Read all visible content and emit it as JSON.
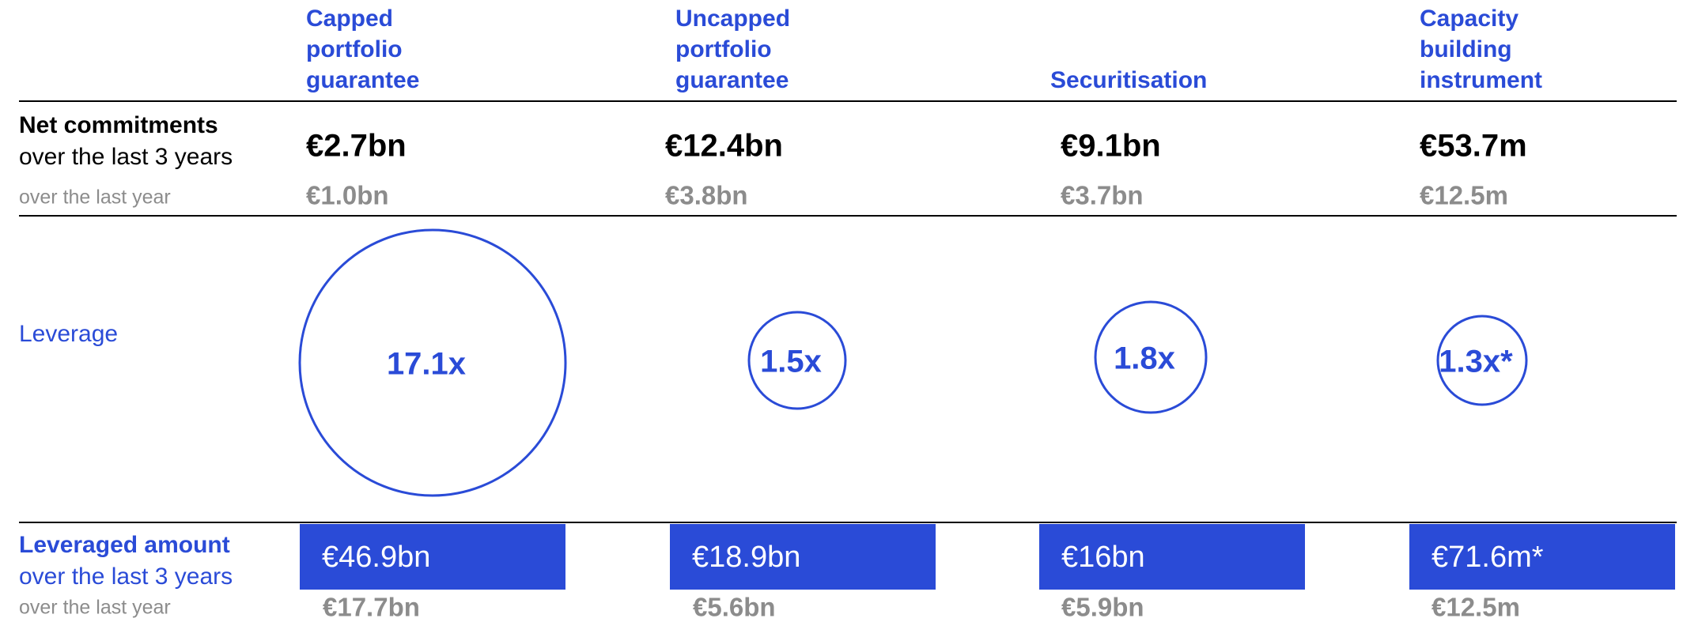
{
  "rows": {
    "net_commitments": {
      "label": "Net commitments",
      "sub": "over the last 3 years",
      "sub2": "over the last year"
    },
    "leverage": {
      "label": "Leverage"
    },
    "leveraged_amount": {
      "label": "Leveraged amount",
      "sub": "over the last 3 years",
      "sub2": "over the last year"
    }
  },
  "columns": [
    {
      "header": [
        "Capped",
        "portfolio",
        "guarantee"
      ],
      "net_3y": "€2.7bn",
      "net_1y": "€1.0bn",
      "leverage": "17.1x",
      "lev_3y": "€46.9bn",
      "lev_1y": "€17.7bn"
    },
    {
      "header": [
        "Uncapped",
        "portfolio",
        "guarantee"
      ],
      "net_3y": "€12.4bn",
      "net_1y": "€3.8bn",
      "leverage": "1.5x",
      "lev_3y": "€18.9bn",
      "lev_1y": "€5.6bn"
    },
    {
      "header": [
        "Securitisation"
      ],
      "net_3y": "€9.1bn",
      "net_1y": "€3.7bn",
      "leverage": "1.8x",
      "lev_3y": "€16bn",
      "lev_1y": "€5.9bn"
    },
    {
      "header": [
        "Capacity",
        "building",
        "instrument"
      ],
      "net_3y": "€53.7m",
      "net_1y": "€12.5m",
      "leverage": "1.3x*",
      "lev_3y": "€71.6m*",
      "lev_1y": "€12.5m"
    }
  ]
}
